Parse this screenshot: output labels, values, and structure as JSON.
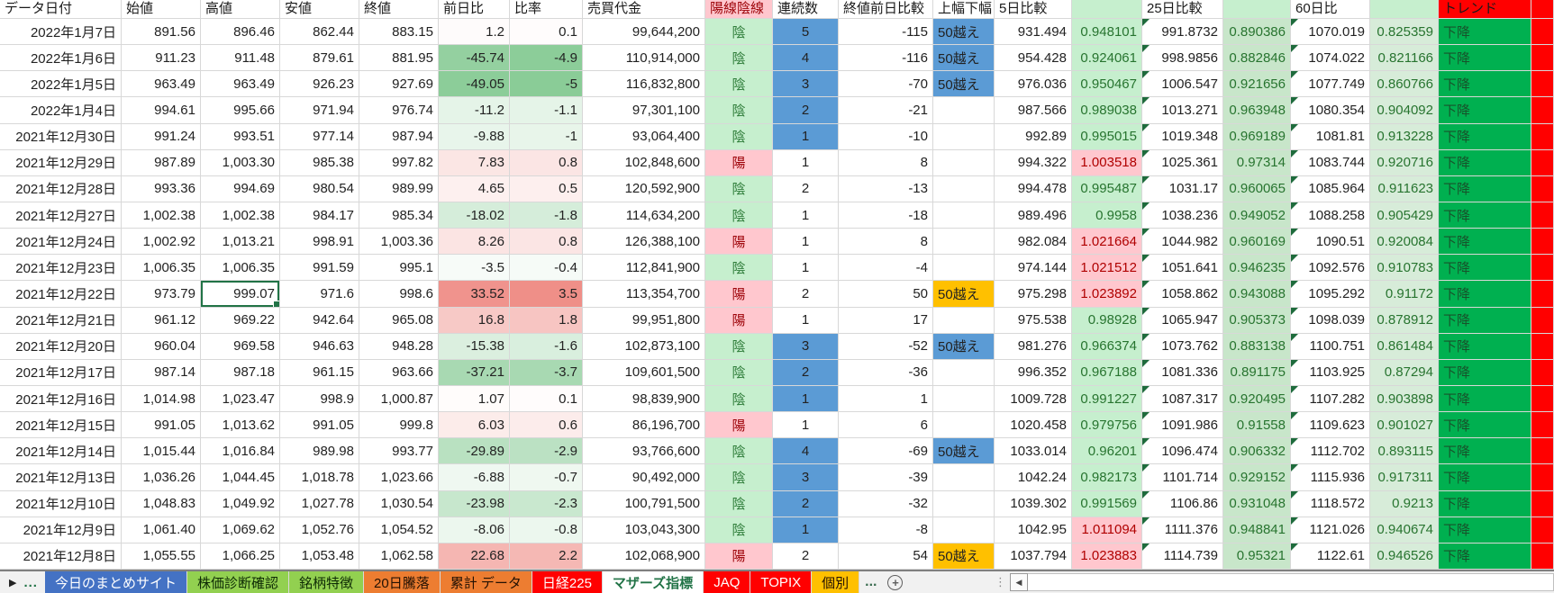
{
  "sheet_title": "マザーズ指標",
  "columns": [
    {
      "key": "date",
      "label": "データ日付"
    },
    {
      "key": "open",
      "label": "始値"
    },
    {
      "key": "high",
      "label": "高値"
    },
    {
      "key": "low",
      "label": "安値"
    },
    {
      "key": "close",
      "label": "終値"
    },
    {
      "key": "chg",
      "label": "前日比"
    },
    {
      "key": "pct",
      "label": "比率"
    },
    {
      "key": "vol",
      "label": "売買代金"
    },
    {
      "key": "candle",
      "label": "陽線陰線"
    },
    {
      "key": "streak",
      "label": "連続数"
    },
    {
      "key": "diff",
      "label": "終値前日比較"
    },
    {
      "key": "over",
      "label": "上幅下幅"
    },
    {
      "key": "d5",
      "label": "5日比較"
    },
    {
      "key": "d5r",
      "label": ""
    },
    {
      "key": "d25",
      "label": "25日比較"
    },
    {
      "key": "d25r",
      "label": ""
    },
    {
      "key": "d60",
      "label": "60日比"
    },
    {
      "key": "d60r",
      "label": ""
    },
    {
      "key": "trend",
      "label": "トレンド"
    },
    {
      "key": "extra",
      "label": ""
    }
  ],
  "rows": [
    {
      "date": "2022年1月7日",
      "open": "891.56",
      "high": "896.46",
      "low": "862.44",
      "close": "883.15",
      "chg": "1.2",
      "pct": "0.1",
      "vol": "99,644,200",
      "candle": "陰",
      "streak": "5",
      "streak_hl": true,
      "diff": "-115",
      "over": "50越え",
      "over_style": "blue",
      "d5": "931.494",
      "d5r": "0.948101",
      "d25": "991.8732",
      "d25r": "0.890386",
      "d60": "1070.019",
      "d60r": "0.825359",
      "trend": "下降"
    },
    {
      "date": "2022年1月6日",
      "open": "911.23",
      "high": "911.48",
      "low": "879.61",
      "close": "881.95",
      "chg": "-45.74",
      "pct": "-4.9",
      "vol": "110,914,000",
      "candle": "陰",
      "streak": "4",
      "streak_hl": true,
      "diff": "-116",
      "over": "50越え",
      "over_style": "blue",
      "d5": "954.428",
      "d5r": "0.924061",
      "d25": "998.9856",
      "d25r": "0.882846",
      "d60": "1074.022",
      "d60r": "0.821166",
      "trend": "下降"
    },
    {
      "date": "2022年1月5日",
      "open": "963.49",
      "high": "963.49",
      "low": "926.23",
      "close": "927.69",
      "chg": "-49.05",
      "pct": "-5",
      "vol": "116,832,800",
      "candle": "陰",
      "streak": "3",
      "streak_hl": true,
      "diff": "-70",
      "over": "50越え",
      "over_style": "blue",
      "d5": "976.036",
      "d5r": "0.950467",
      "d25": "1006.547",
      "d25r": "0.921656",
      "d60": "1077.749",
      "d60r": "0.860766",
      "trend": "下降"
    },
    {
      "date": "2022年1月4日",
      "open": "994.61",
      "high": "995.66",
      "low": "971.94",
      "close": "976.74",
      "chg": "-11.2",
      "pct": "-1.1",
      "vol": "97,301,100",
      "candle": "陰",
      "streak": "2",
      "streak_hl": true,
      "diff": "-21",
      "over": "",
      "over_style": "",
      "d5": "987.566",
      "d5r": "0.989038",
      "d25": "1013.271",
      "d25r": "0.963948",
      "d60": "1080.354",
      "d60r": "0.904092",
      "trend": "下降"
    },
    {
      "date": "2021年12月30日",
      "open": "991.24",
      "high": "993.51",
      "low": "977.14",
      "close": "987.94",
      "chg": "-9.88",
      "pct": "-1",
      "vol": "93,064,400",
      "candle": "陰",
      "streak": "1",
      "streak_hl": true,
      "diff": "-10",
      "over": "",
      "over_style": "",
      "d5": "992.89",
      "d5r": "0.995015",
      "d25": "1019.348",
      "d25r": "0.969189",
      "d60": "1081.81",
      "d60r": "0.913228",
      "trend": "下降"
    },
    {
      "date": "2021年12月29日",
      "open": "987.89",
      "high": "1,003.30",
      "low": "985.38",
      "close": "997.82",
      "chg": "7.83",
      "pct": "0.8",
      "vol": "102,848,600",
      "candle": "陽",
      "streak": "1",
      "streak_hl": false,
      "diff": "8",
      "over": "",
      "over_style": "",
      "d5": "994.322",
      "d5r": "1.003518",
      "d25": "1025.361",
      "d25r": "0.97314",
      "d60": "1083.744",
      "d60r": "0.920716",
      "trend": "下降"
    },
    {
      "date": "2021年12月28日",
      "open": "993.36",
      "high": "994.69",
      "low": "980.54",
      "close": "989.99",
      "chg": "4.65",
      "pct": "0.5",
      "vol": "120,592,900",
      "candle": "陰",
      "streak": "2",
      "streak_hl": false,
      "diff": "-13",
      "over": "",
      "over_style": "",
      "d5": "994.478",
      "d5r": "0.995487",
      "d25": "1031.17",
      "d25r": "0.960065",
      "d60": "1085.964",
      "d60r": "0.911623",
      "trend": "下降"
    },
    {
      "date": "2021年12月27日",
      "open": "1,002.38",
      "high": "1,002.38",
      "low": "984.17",
      "close": "985.34",
      "chg": "-18.02",
      "pct": "-1.8",
      "vol": "114,634,200",
      "candle": "陰",
      "streak": "1",
      "streak_hl": false,
      "diff": "-18",
      "over": "",
      "over_style": "",
      "d5": "989.496",
      "d5r": "0.9958",
      "d25": "1038.236",
      "d25r": "0.949052",
      "d60": "1088.258",
      "d60r": "0.905429",
      "trend": "下降"
    },
    {
      "date": "2021年12月24日",
      "open": "1,002.92",
      "high": "1,013.21",
      "low": "998.91",
      "close": "1,003.36",
      "chg": "8.26",
      "pct": "0.8",
      "vol": "126,388,100",
      "candle": "陽",
      "streak": "1",
      "streak_hl": false,
      "diff": "8",
      "over": "",
      "over_style": "",
      "d5": "982.084",
      "d5r": "1.021664",
      "d25": "1044.982",
      "d25r": "0.960169",
      "d60": "1090.51",
      "d60r": "0.920084",
      "trend": "下降"
    },
    {
      "date": "2021年12月23日",
      "open": "1,006.35",
      "high": "1,006.35",
      "low": "991.59",
      "close": "995.1",
      "chg": "-3.5",
      "pct": "-0.4",
      "vol": "112,841,900",
      "candle": "陰",
      "streak": "1",
      "streak_hl": false,
      "diff": "-4",
      "over": "",
      "over_style": "",
      "d5": "974.144",
      "d5r": "1.021512",
      "d25": "1051.641",
      "d25r": "0.946235",
      "d60": "1092.576",
      "d60r": "0.910783",
      "trend": "下降"
    },
    {
      "date": "2021年12月22日",
      "open": "973.79",
      "high": "999.07",
      "low": "971.6",
      "close": "998.6",
      "chg": "33.52",
      "pct": "3.5",
      "vol": "113,354,700",
      "candle": "陽",
      "streak": "2",
      "streak_hl": false,
      "diff": "50",
      "over": "50越え",
      "over_style": "orange",
      "d5": "975.298",
      "d5r": "1.023892",
      "d25": "1058.862",
      "d25r": "0.943088",
      "d60": "1095.292",
      "d60r": "0.91172",
      "trend": "下降",
      "selected": "high"
    },
    {
      "date": "2021年12月21日",
      "open": "961.12",
      "high": "969.22",
      "low": "942.64",
      "close": "965.08",
      "chg": "16.8",
      "pct": "1.8",
      "vol": "99,951,800",
      "candle": "陽",
      "streak": "1",
      "streak_hl": false,
      "diff": "17",
      "over": "",
      "over_style": "",
      "d5": "975.538",
      "d5r": "0.98928",
      "d25": "1065.947",
      "d25r": "0.905373",
      "d60": "1098.039",
      "d60r": "0.878912",
      "trend": "下降"
    },
    {
      "date": "2021年12月20日",
      "open": "960.04",
      "high": "969.58",
      "low": "946.63",
      "close": "948.28",
      "chg": "-15.38",
      "pct": "-1.6",
      "vol": "102,873,100",
      "candle": "陰",
      "streak": "3",
      "streak_hl": true,
      "diff": "-52",
      "over": "50越え",
      "over_style": "blue",
      "d5": "981.276",
      "d5r": "0.966374",
      "d25": "1073.762",
      "d25r": "0.883138",
      "d60": "1100.751",
      "d60r": "0.861484",
      "trend": "下降"
    },
    {
      "date": "2021年12月17日",
      "open": "987.14",
      "high": "987.18",
      "low": "961.15",
      "close": "963.66",
      "chg": "-37.21",
      "pct": "-3.7",
      "vol": "109,601,500",
      "candle": "陰",
      "streak": "2",
      "streak_hl": true,
      "diff": "-36",
      "over": "",
      "over_style": "",
      "d5": "996.352",
      "d5r": "0.967188",
      "d25": "1081.336",
      "d25r": "0.891175",
      "d60": "1103.925",
      "d60r": "0.87294",
      "trend": "下降"
    },
    {
      "date": "2021年12月16日",
      "open": "1,014.98",
      "high": "1,023.47",
      "low": "998.9",
      "close": "1,000.87",
      "chg": "1.07",
      "pct": "0.1",
      "vol": "98,839,900",
      "candle": "陰",
      "streak": "1",
      "streak_hl": true,
      "diff": "1",
      "over": "",
      "over_style": "",
      "d5": "1009.728",
      "d5r": "0.991227",
      "d25": "1087.317",
      "d25r": "0.920495",
      "d60": "1107.282",
      "d60r": "0.903898",
      "trend": "下降"
    },
    {
      "date": "2021年12月15日",
      "open": "991.05",
      "high": "1,013.62",
      "low": "991.05",
      "close": "999.8",
      "chg": "6.03",
      "pct": "0.6",
      "vol": "86,196,700",
      "candle": "陽",
      "streak": "1",
      "streak_hl": false,
      "diff": "6",
      "over": "",
      "over_style": "",
      "d5": "1020.458",
      "d5r": "0.979756",
      "d25": "1091.986",
      "d25r": "0.91558",
      "d60": "1109.623",
      "d60r": "0.901027",
      "trend": "下降"
    },
    {
      "date": "2021年12月14日",
      "open": "1,015.44",
      "high": "1,016.84",
      "low": "989.98",
      "close": "993.77",
      "chg": "-29.89",
      "pct": "-2.9",
      "vol": "93,766,600",
      "candle": "陰",
      "streak": "4",
      "streak_hl": true,
      "diff": "-69",
      "over": "50越え",
      "over_style": "blue",
      "d5": "1033.014",
      "d5r": "0.96201",
      "d25": "1096.474",
      "d25r": "0.906332",
      "d60": "1112.702",
      "d60r": "0.893115",
      "trend": "下降"
    },
    {
      "date": "2021年12月13日",
      "open": "1,036.26",
      "high": "1,044.45",
      "low": "1,018.78",
      "close": "1,023.66",
      "chg": "-6.88",
      "pct": "-0.7",
      "vol": "90,492,000",
      "candle": "陰",
      "streak": "3",
      "streak_hl": true,
      "diff": "-39",
      "over": "",
      "over_style": "",
      "d5": "1042.24",
      "d5r": "0.982173",
      "d25": "1101.714",
      "d25r": "0.929152",
      "d60": "1115.936",
      "d60r": "0.917311",
      "trend": "下降"
    },
    {
      "date": "2021年12月10日",
      "open": "1,048.83",
      "high": "1,049.92",
      "low": "1,027.78",
      "close": "1,030.54",
      "chg": "-23.98",
      "pct": "-2.3",
      "vol": "100,791,500",
      "candle": "陰",
      "streak": "2",
      "streak_hl": true,
      "diff": "-32",
      "over": "",
      "over_style": "",
      "d5": "1039.302",
      "d5r": "0.991569",
      "d25": "1106.86",
      "d25r": "0.931048",
      "d60": "1118.572",
      "d60r": "0.9213",
      "trend": "下降"
    },
    {
      "date": "2021年12月9日",
      "open": "1,061.40",
      "high": "1,069.62",
      "low": "1,052.76",
      "close": "1,054.52",
      "chg": "-8.06",
      "pct": "-0.8",
      "vol": "103,043,300",
      "candle": "陰",
      "streak": "1",
      "streak_hl": true,
      "diff": "-8",
      "over": "",
      "over_style": "",
      "d5": "1042.95",
      "d5r": "1.011094",
      "d25": "1111.376",
      "d25r": "0.948841",
      "d60": "1121.026",
      "d60r": "0.940674",
      "trend": "下降"
    },
    {
      "date": "2021年12月8日",
      "open": "1,055.55",
      "high": "1,066.25",
      "low": "1,053.48",
      "close": "1,062.58",
      "chg": "22.68",
      "pct": "2.2",
      "vol": "102,068,900",
      "candle": "陽",
      "streak": "2",
      "streak_hl": false,
      "diff": "54",
      "over": "50越え",
      "over_style": "orange",
      "d5": "1037.794",
      "d5r": "1.023883",
      "d25": "1114.739",
      "d25r": "0.95321",
      "d60": "1122.61",
      "d60r": "0.946526",
      "trend": "下降"
    }
  ],
  "sheet_tabs": [
    {
      "label": "今日のまとめサイト",
      "bg": "#4472C4",
      "fg": "#FFFFFF",
      "active": false
    },
    {
      "label": "株価診断確認",
      "bg": "#92D050",
      "fg": "#0E2A05",
      "active": false
    },
    {
      "label": "銘柄特徴",
      "bg": "#92D050",
      "fg": "#0E2A05",
      "active": false
    },
    {
      "label": "20日騰落",
      "bg": "#ED7D31",
      "fg": "#231103",
      "active": false
    },
    {
      "label": "累計 データ",
      "bg": "#ED7D31",
      "fg": "#231103",
      "active": false
    },
    {
      "label": "日経225",
      "bg": "#FF0000",
      "fg": "#FFFFFF",
      "active": false
    },
    {
      "label": "マザーズ指標",
      "bg": "#FFFFFF",
      "fg": "#217346",
      "active": true
    },
    {
      "label": "JAQ",
      "bg": "#FF0000",
      "fg": "#FFFFFF",
      "active": false
    },
    {
      "label": "TOPIX",
      "bg": "#FF0000",
      "fg": "#FFFFFF",
      "active": false
    },
    {
      "label": "個別",
      "bg": "#FFC000",
      "fg": "#231103",
      "active": false
    }
  ],
  "icons": {
    "nav_arrow": "▶",
    "ellipsis": "...",
    "plus": "+",
    "grip": "⋮",
    "scroll_left": "◀"
  },
  "colors": {
    "grid_line": "#D8D8D8",
    "bear_bg": "#C6EFCE",
    "bear_text": "#2F7D3A",
    "bull_bg": "#FFC7CE",
    "bull_text": "#9C0006",
    "streak_highlight_blue": "#5B9BD5",
    "over_orange": "#FFC000",
    "ratio5_down_bg": "#C6EFCE",
    "ratio25_down_bg": "#C8E6CA",
    "ratio60_down_bg": "#D7ECD9",
    "ratio_down_text": "#27742F",
    "ratio_up_bg": "#FFC7CE",
    "ratio_up_text": "#B00000",
    "trend_bg": "#00B050",
    "trend_text": "#17532B",
    "header_red": "#FF0000",
    "selection_border": "#217346",
    "neg_scale_strong": "#7EC78D",
    "pos_scale_strong": "#EC7870"
  },
  "scales": {
    "chg_neg_max": 55,
    "chg_pos_max": 42,
    "pct_neg_max": 5.5,
    "pct_pos_max": 4.2
  }
}
